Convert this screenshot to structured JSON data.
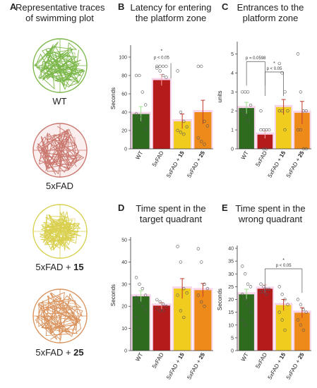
{
  "panel_letters": {
    "a": "A",
    "b": "B",
    "c": "C",
    "d": "D",
    "e": "E"
  },
  "panel_a": {
    "title_line1": "Representative traces",
    "title_line2": "of swimming plot",
    "labels": [
      {
        "prefix": "WT",
        "suffix": ""
      },
      {
        "prefix": "5xFAD",
        "suffix": ""
      },
      {
        "prefix": "5xFAD + ",
        "suffix": "15"
      },
      {
        "prefix": "5xFAD + ",
        "suffix": "25"
      }
    ],
    "colors": [
      "#7ab648",
      "#c9766d",
      "#d9d050",
      "#d9925c"
    ]
  },
  "panel_titles": {
    "b": [
      "Latency for entering",
      "the platform zone"
    ],
    "c": [
      "Entrances to the",
      "platform zone"
    ],
    "d": [
      "Time spent in the",
      "target quadrant"
    ],
    "e": [
      "Time spent in the",
      "wrong quadrant"
    ]
  },
  "colors": {
    "wt": "#2e6b1f",
    "fad": "#b41b1b",
    "fad15": "#f0cc1e",
    "fad25": "#ee8a1a",
    "highlight": "#f3c4e2"
  },
  "chart_data": [
    {
      "id": "b",
      "type": "bar",
      "ylabel": "Seconds",
      "ylim": [
        0,
        110
      ],
      "ticks": [
        0,
        20,
        40,
        60,
        80,
        100
      ],
      "categories": [
        {
          "prefix": "WT",
          "suffix": ""
        },
        {
          "prefix": "5xFAD",
          "suffix": ""
        },
        {
          "prefix": "5xFAD + ",
          "suffix": "15"
        },
        {
          "prefix": "5xFAD + ",
          "suffix": "25"
        }
      ],
      "values": [
        38,
        75,
        30,
        40
      ],
      "errors": [
        8,
        6,
        8,
        13
      ],
      "points": [
        [
          80,
          80,
          62,
          48,
          38,
          35,
          30,
          22
        ],
        [
          90,
          90,
          90,
          90,
          88,
          85,
          80,
          78
        ],
        [
          85,
          40,
          30,
          24,
          20,
          18,
          16
        ],
        [
          90,
          90,
          30,
          25,
          12,
          8,
          5
        ]
      ],
      "annotations": [
        {
          "type": "bracket",
          "from": 1,
          "to": 1,
          "y": 95,
          "star": "*",
          "text": "p < 0.05"
        }
      ]
    },
    {
      "id": "c",
      "type": "bar",
      "ylabel": "units",
      "ylim": [
        0,
        5.5
      ],
      "ticks": [
        0,
        1,
        2,
        3,
        4,
        5
      ],
      "categories": [
        {
          "prefix": "WT",
          "suffix": ""
        },
        {
          "prefix": "5xFAD",
          "suffix": ""
        },
        {
          "prefix": "5xFAD + ",
          "suffix": "15"
        },
        {
          "prefix": "5xFAD + ",
          "suffix": "25"
        }
      ],
      "values": [
        2.15,
        0.75,
        2.2,
        1.9
      ],
      "errors": [
        0.3,
        0.2,
        0.4,
        0.6
      ],
      "points": [
        [
          3,
          3,
          3,
          2.3,
          2,
          1.8,
          1.5
        ],
        [
          2,
          1,
          1,
          1,
          1,
          0,
          0
        ],
        [
          4.5,
          4,
          3,
          2,
          2,
          2,
          1
        ],
        [
          5,
          3,
          2,
          2,
          1,
          1,
          0,
          0
        ]
      ],
      "annotations": [
        {
          "type": "bracket",
          "from": 0,
          "to": 1,
          "y": 4.6,
          "star": "",
          "text": "p = 0.0598"
        },
        {
          "type": "bracket",
          "from": 1,
          "to": 2,
          "y": 4.05,
          "star": "*",
          "text": "p < 0.05"
        }
      ]
    },
    {
      "id": "d",
      "type": "bar",
      "ylabel": "Seconds",
      "ylim": [
        0,
        50
      ],
      "ticks": [
        0,
        10,
        20,
        30,
        40,
        50
      ],
      "categories": [
        {
          "prefix": "WT",
          "suffix": ""
        },
        {
          "prefix": "5xFAD",
          "suffix": ""
        },
        {
          "prefix": "5xFAD + ",
          "suffix": "15"
        },
        {
          "prefix": "5xFAD + ",
          "suffix": "25"
        }
      ],
      "values": [
        24.5,
        20.3,
        28,
        27.3
      ],
      "errors": [
        2.5,
        1.5,
        4.5,
        3
      ],
      "points": [
        [
          33,
          30,
          28,
          25,
          24,
          22,
          20,
          18,
          15,
          10
        ],
        [
          23,
          22,
          21,
          20,
          19,
          18,
          18
        ],
        [
          47,
          40,
          28,
          26,
          25,
          18,
          15
        ],
        [
          46,
          40,
          30,
          28,
          25,
          22,
          20
        ]
      ],
      "annotations": []
    },
    {
      "id": "e",
      "type": "bar",
      "ylabel": "Seconds",
      "ylim": [
        0,
        40
      ],
      "ticks": [
        0,
        5,
        10,
        15,
        20,
        25,
        30,
        35,
        40
      ],
      "categories": [
        {
          "prefix": "WT",
          "suffix": ""
        },
        {
          "prefix": "5xFAD",
          "suffix": ""
        },
        {
          "prefix": "5xFAD + ",
          "suffix": "15"
        },
        {
          "prefix": "5xFAD + ",
          "suffix": "25"
        }
      ],
      "values": [
        22,
        24.2,
        17.8,
        14.8
      ],
      "errors": [
        2,
        1.5,
        2.2,
        2
      ],
      "points": [
        [
          33,
          30,
          26,
          25,
          22,
          20,
          18,
          15,
          12,
          10
        ],
        [
          26,
          25,
          24,
          24,
          23,
          23,
          22
        ],
        [
          25,
          22,
          20,
          18,
          15,
          12,
          8
        ],
        [
          20,
          18,
          16,
          15,
          12,
          10,
          8
        ]
      ],
      "annotations": [
        {
          "type": "bracket",
          "from": 1,
          "to": 3,
          "y": 32,
          "star": "*",
          "text": "p < 0.05"
        }
      ]
    }
  ]
}
